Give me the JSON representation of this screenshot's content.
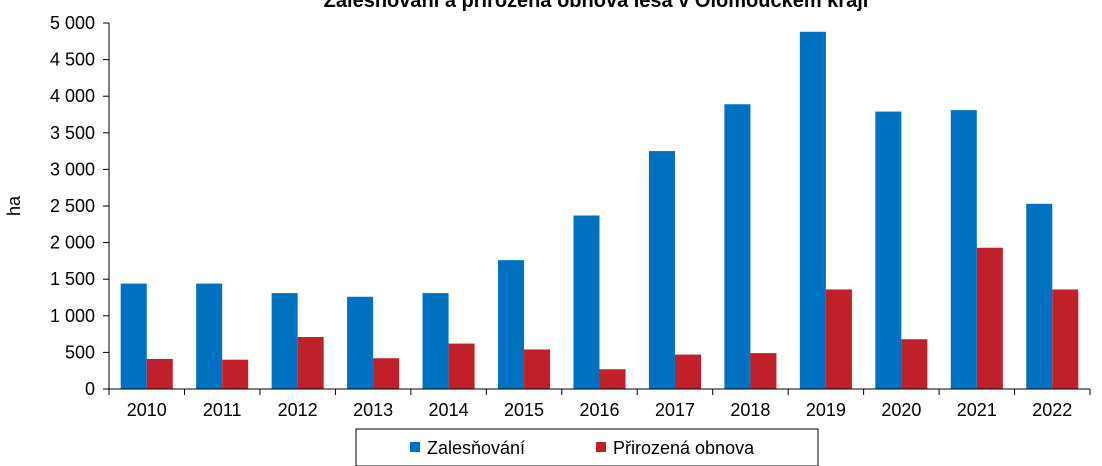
{
  "chart_data": {
    "type": "bar",
    "title": "Zalesňování a přirozená obnova lesa v Olomouckém kraji",
    "xlabel": "",
    "ylabel": "ha",
    "ylim": [
      0,
      5000
    ],
    "yticks": [
      0,
      500,
      1000,
      1500,
      2000,
      2500,
      3000,
      3500,
      4000,
      4500,
      5000
    ],
    "ytick_labels": [
      "0",
      "500",
      "1 000",
      "1 500",
      "2 000",
      "2 500",
      "3 000",
      "3 500",
      "4 000",
      "4 500",
      "5 000"
    ],
    "grid": false,
    "legend_position": "bottom",
    "categories": [
      "2010",
      "2011",
      "2012",
      "2013",
      "2014",
      "2015",
      "2016",
      "2017",
      "2018",
      "2019",
      "2020",
      "2021",
      "2022"
    ],
    "series": [
      {
        "name": "Zalesňování",
        "color": "#0070C0",
        "values": [
          1440,
          1440,
          1310,
          1260,
          1310,
          1760,
          2370,
          3250,
          3890,
          4880,
          3790,
          3810,
          2530
        ]
      },
      {
        "name": "Přirozená obnova",
        "color": "#C0202A",
        "values": [
          410,
          400,
          710,
          420,
          620,
          540,
          270,
          470,
          490,
          1360,
          680,
          1930,
          1360
        ]
      }
    ]
  }
}
